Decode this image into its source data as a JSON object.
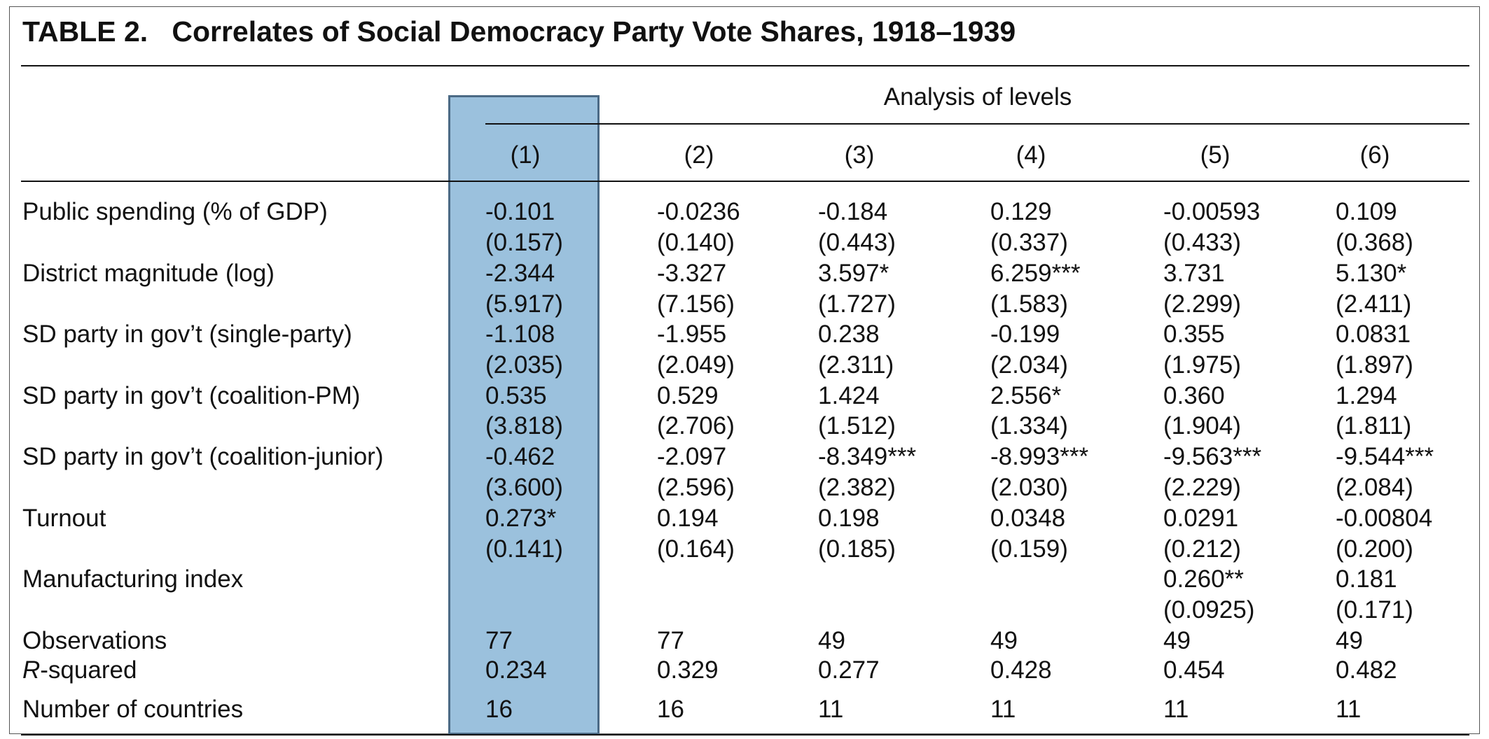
{
  "table": {
    "title": "TABLE 2.   Correlates of Social Democracy Party Vote Shares, 1918–1939",
    "group_header": "Analysis of levels",
    "columns": [
      "(1)",
      "(2)",
      "(3)",
      "(4)",
      "(5)",
      "(6)"
    ],
    "highlighted_column": "(1)",
    "rows": [
      {
        "label": "Public spending (% of GDP)",
        "coef": [
          "-0.101",
          "-0.0236",
          "-0.184",
          "0.129",
          "-0.00593",
          "0.109"
        ],
        "se": [
          "(0.157)",
          "(0.140)",
          "(0.443)",
          "(0.337)",
          "(0.433)",
          "(0.368)"
        ]
      },
      {
        "label": "District magnitude (log)",
        "coef": [
          "-2.344",
          "-3.327",
          "3.597*",
          "6.259***",
          "3.731",
          "5.130*"
        ],
        "se": [
          "(5.917)",
          "(7.156)",
          "(1.727)",
          "(1.583)",
          "(2.299)",
          "(2.411)"
        ]
      },
      {
        "label": "SD party in gov’t (single-party)",
        "coef": [
          "-1.108",
          "-1.955",
          "0.238",
          "-0.199",
          "0.355",
          "0.0831"
        ],
        "se": [
          "(2.035)",
          "(2.049)",
          "(2.311)",
          "(2.034)",
          "(1.975)",
          "(1.897)"
        ]
      },
      {
        "label": "SD party in gov’t (coalition-PM)",
        "coef": [
          "0.535",
          "0.529",
          "1.424",
          "2.556*",
          "0.360",
          "1.294"
        ],
        "se": [
          "(3.818)",
          "(2.706)",
          "(1.512)",
          "(1.334)",
          "(1.904)",
          "(1.811)"
        ]
      },
      {
        "label": "SD party in gov’t (coalition-junior)",
        "coef": [
          "-0.462",
          "-2.097",
          "-8.349***",
          "-8.993***",
          "-9.563***",
          "-9.544***"
        ],
        "se": [
          "(3.600)",
          "(2.596)",
          "(2.382)",
          "(2.030)",
          "(2.229)",
          "(2.084)"
        ]
      },
      {
        "label": "Turnout",
        "coef": [
          "0.273*",
          "0.194",
          "0.198",
          "0.0348",
          "0.0291",
          "-0.00804"
        ],
        "se": [
          "(0.141)",
          "(0.164)",
          "(0.185)",
          "(0.159)",
          "(0.212)",
          "(0.200)"
        ]
      },
      {
        "label": "Manufacturing index",
        "coef": [
          "",
          "",
          "",
          "",
          "0.260**",
          "0.181"
        ],
        "se": [
          "",
          "",
          "",
          "",
          "(0.0925)",
          "(0.171)"
        ]
      }
    ],
    "stats": [
      {
        "label": "Observations",
        "values": [
          "77",
          "77",
          "49",
          "49",
          "49",
          "49"
        ]
      },
      {
        "label_italic": "R",
        "label_rest": "-squared",
        "values": [
          "0.234",
          "0.329",
          "0.277",
          "0.428",
          "0.454",
          "0.482"
        ]
      },
      {
        "label": "Number of countries",
        "values": [
          "16",
          "16",
          "11",
          "11",
          "11",
          "11"
        ]
      }
    ]
  }
}
